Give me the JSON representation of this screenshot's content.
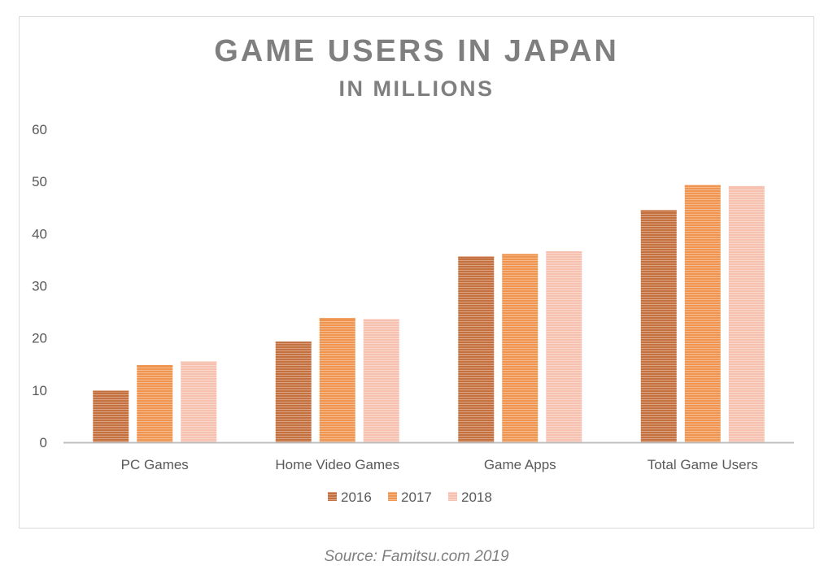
{
  "chart_data": {
    "type": "bar",
    "title": "GAME USERS IN JAPAN",
    "subtitle": "IN MILLIONS",
    "categories": [
      "PC Games",
      "Home Video Games",
      "Game Apps",
      "Total Game Users"
    ],
    "series": [
      {
        "name": "2016",
        "color": "#c5703f",
        "values": [
          9.9,
          19.3,
          35.6,
          44.5
        ]
      },
      {
        "name": "2017",
        "color": "#ef9550",
        "values": [
          14.8,
          23.8,
          36.1,
          49.3
        ]
      },
      {
        "name": "2018",
        "color": "#f7c1b0",
        "values": [
          15.5,
          23.6,
          36.6,
          49.1
        ]
      }
    ],
    "ylim": [
      0,
      60
    ],
    "yticks": [
      "0",
      "10",
      "20",
      "30",
      "40",
      "50",
      "60"
    ],
    "grid": false,
    "legend_position": "bottom",
    "bar_texture": "horizontal-stripes"
  },
  "footer": {
    "source": "Source: Famitsu.com 2019"
  }
}
